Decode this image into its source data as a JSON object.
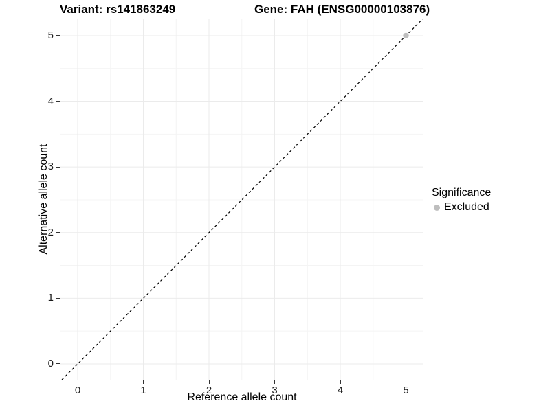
{
  "chart_data": {
    "type": "scatter",
    "title_left": "Variant: rs141863249",
    "title_right": "Gene: FAH (ENSG00000103876)",
    "xlabel": "Reference allele count",
    "ylabel": "Alternative allele count",
    "xlim": [
      -0.262,
      5.267
    ],
    "ylim": [
      -0.241,
      5.261
    ],
    "x_ticks": [
      0,
      1,
      2,
      3,
      4,
      5
    ],
    "y_ticks": [
      0,
      1,
      2,
      3,
      4,
      5
    ],
    "x_minor_ticks": [
      0.5,
      1.5,
      2.5,
      3.5,
      4.5
    ],
    "y_minor_ticks": [
      0.5,
      1.5,
      2.5,
      3.5,
      4.5
    ],
    "grid": "major and minor gridlines, white panel background",
    "series": [
      {
        "name": "Excluded",
        "color": "#bebebe",
        "points": [
          {
            "x": 5,
            "y": 5
          }
        ]
      }
    ],
    "reference_line": {
      "description": "identity line y = x",
      "slope": 1,
      "intercept": 0,
      "style": "dashed",
      "color": "#000000"
    },
    "legend": {
      "position": "right",
      "title": "Significance",
      "items": [
        {
          "label": "Excluded",
          "color": "#bebebe"
        }
      ]
    }
  },
  "colors": {
    "grid_major": "#ebebeb",
    "grid_minor": "#f4f4f4",
    "axis_line": "#333333",
    "tick_text": "#1a1a1a",
    "background": "#ffffff"
  }
}
